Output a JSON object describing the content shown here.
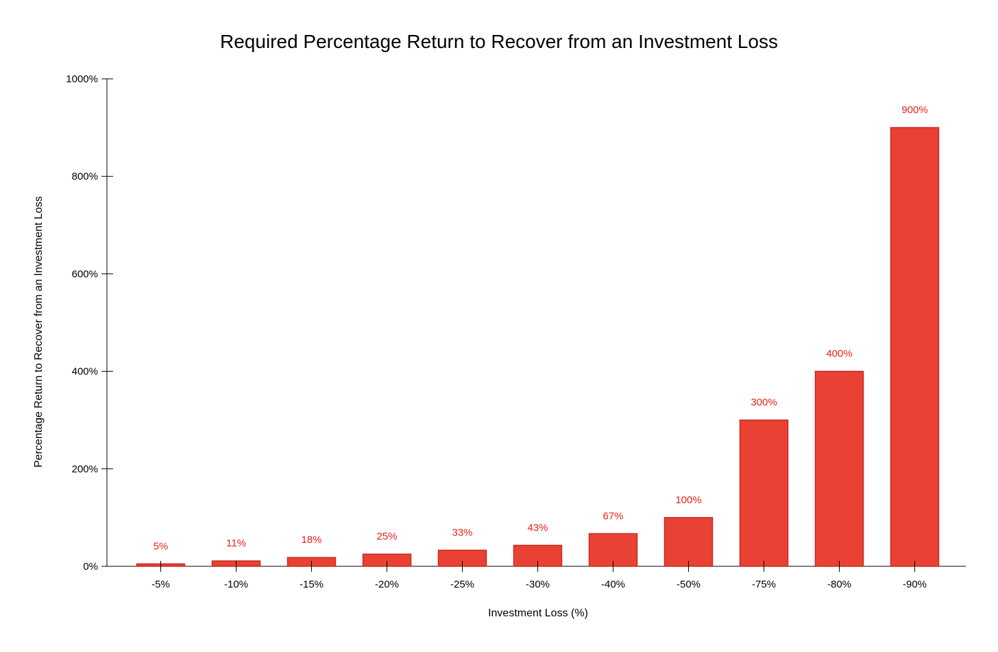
{
  "chart_data": {
    "type": "bar",
    "title": "Required Percentage Return to Recover from an Investment Loss",
    "xlabel": "Investment Loss (%)",
    "ylabel": "Percentage Return to Recover from an Investment Loss",
    "categories": [
      "-5%",
      "-10%",
      "-15%",
      "-20%",
      "-25%",
      "-30%",
      "-40%",
      "-50%",
      "-75%",
      "-80%",
      "-90%"
    ],
    "values": [
      5,
      11,
      18,
      25,
      33,
      43,
      67,
      100,
      300,
      400,
      900
    ],
    "data_labels": [
      "5%",
      "11%",
      "18%",
      "25%",
      "33%",
      "43%",
      "67%",
      "100%",
      "300%",
      "400%",
      "900%"
    ],
    "ylim": [
      0,
      1000
    ],
    "y_ticks": [
      0,
      200,
      400,
      600,
      800,
      1000
    ],
    "y_tick_labels": [
      "0%",
      "200%",
      "400%",
      "600%",
      "800%",
      "1000%"
    ],
    "grid": false,
    "bar_color": "#e94235",
    "label_color": "#e8221c"
  }
}
